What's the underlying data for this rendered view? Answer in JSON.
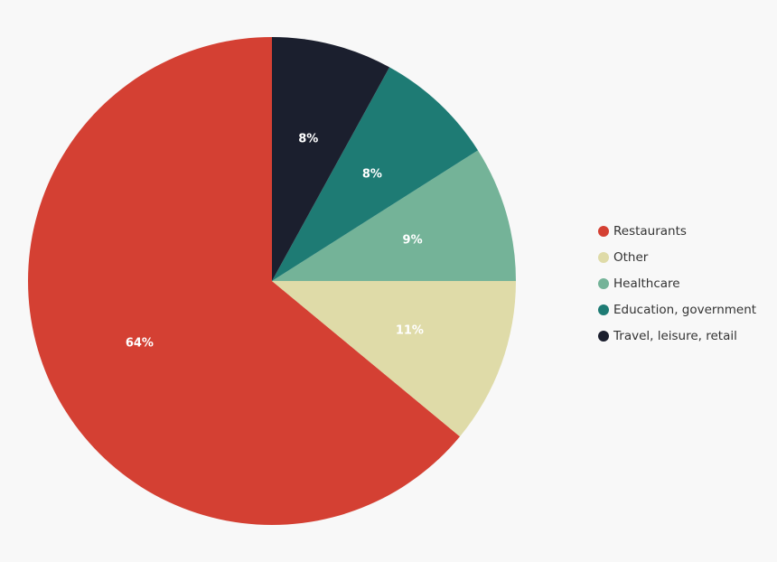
{
  "chart_data": {
    "type": "pie",
    "categories": [
      "Restaurants",
      "Other",
      "Healthcare",
      "Education, government",
      "Travel, leisure, retail"
    ],
    "values": [
      64,
      11,
      9,
      8,
      8
    ],
    "data_labels": [
      "64%",
      "11%",
      "9%",
      "8%",
      "8%"
    ],
    "colors": [
      "#d44033",
      "#dfdba8",
      "#74b398",
      "#1e7b74",
      "#1b1f2e"
    ],
    "start": "12 o'clock",
    "direction": "clockwise",
    "legend_position": "right"
  }
}
